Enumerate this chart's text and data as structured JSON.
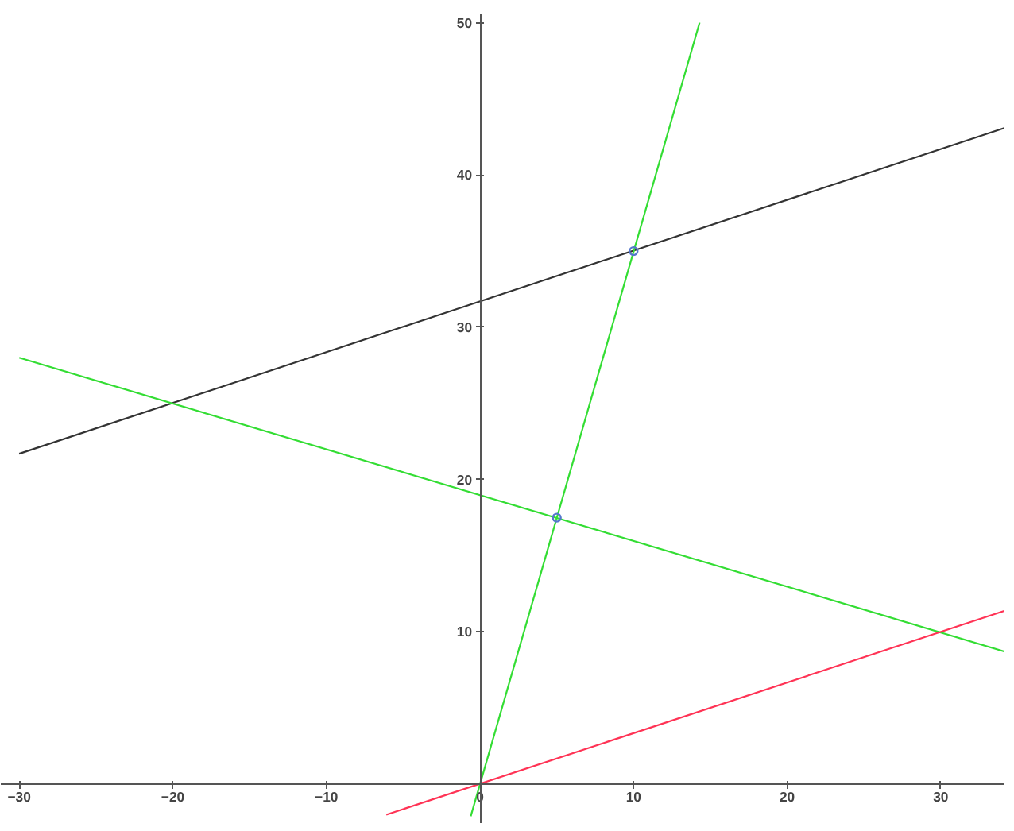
{
  "chart_data": {
    "type": "line",
    "xlim": [
      -31.2,
      34.2
    ],
    "ylim": [
      -2.6,
      50.6
    ],
    "xticks": [
      -30,
      -20,
      -10,
      0,
      10,
      20,
      30
    ],
    "yticks": [
      10,
      20,
      30,
      40,
      50
    ],
    "grid": false,
    "marker": "none",
    "series": [
      {
        "color": "#333333",
        "x": [
          -30,
          34.2
        ],
        "values": [
          21.7,
          43.1
        ]
      },
      {
        "color": "#33dd33",
        "x": [
          -30,
          34.2
        ],
        "values": [
          28,
          8.7
        ]
      },
      {
        "color": "#33dd33",
        "x": [
          -0.6,
          14.3
        ],
        "values": [
          -2.1,
          50
        ]
      },
      {
        "color": "#ff3355",
        "x": [
          -6.1,
          34.2
        ],
        "values": [
          -2.0,
          11.4
        ]
      },
      {
        "type": "scatter",
        "marker": "circle",
        "color": "#5577cc",
        "x": [
          5,
          10
        ],
        "values": [
          17.5,
          35
        ]
      }
    ]
  }
}
